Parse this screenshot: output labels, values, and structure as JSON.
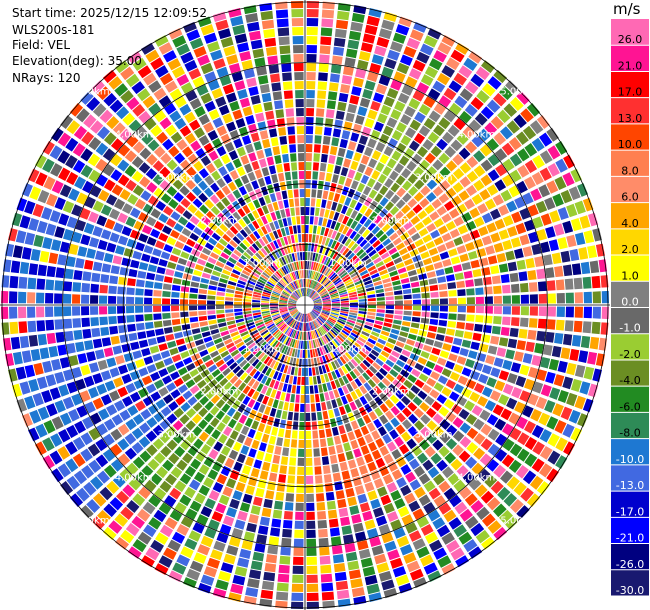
{
  "info": {
    "start_time": "Start time: 2025/12/15 12:09:52",
    "station": "WLS200s-181",
    "field": "Field: VEL",
    "elevation": "Elevation(deg): 35.00",
    "nrays": "NRays: 120"
  },
  "chart_data": {
    "type": "heatmap",
    "projection": "polar-ppi",
    "title": "",
    "range_labels": [
      "1.00km",
      "2.00km",
      "3.00km",
      "4.00km",
      "5.00km"
    ],
    "range_rings_km": [
      1,
      2,
      3,
      4,
      5
    ],
    "max_range_km": 5.0,
    "nrays": 120,
    "colorbar": {
      "unit": "m/s",
      "ticks": [
        "26.0",
        "21.0",
        "17.0",
        "13.0",
        "10.0",
        "8.0",
        "6.0",
        "4.0",
        "2.0",
        "1.0",
        "0.0",
        "-1.0",
        "-2.0",
        "-4.0",
        "-6.0",
        "-8.0",
        "-10.0",
        "-13.0",
        "-17.0",
        "-21.0",
        "-26.0",
        "-30.0"
      ],
      "colors": [
        "#ff69b4",
        "#ff1493",
        "#ff0000",
        "#ff3030",
        "#ff4500",
        "#ff7f50",
        "#ff8c69",
        "#ffa500",
        "#ffd700",
        "#ffff00",
        "#808080",
        "#696969",
        "#9acd32",
        "#6b8e23",
        "#228b22",
        "#2e8b57",
        "#1e78d2",
        "#4169e1",
        "#0000cd",
        "#0000ff",
        "#000080",
        "#191970"
      ]
    }
  }
}
